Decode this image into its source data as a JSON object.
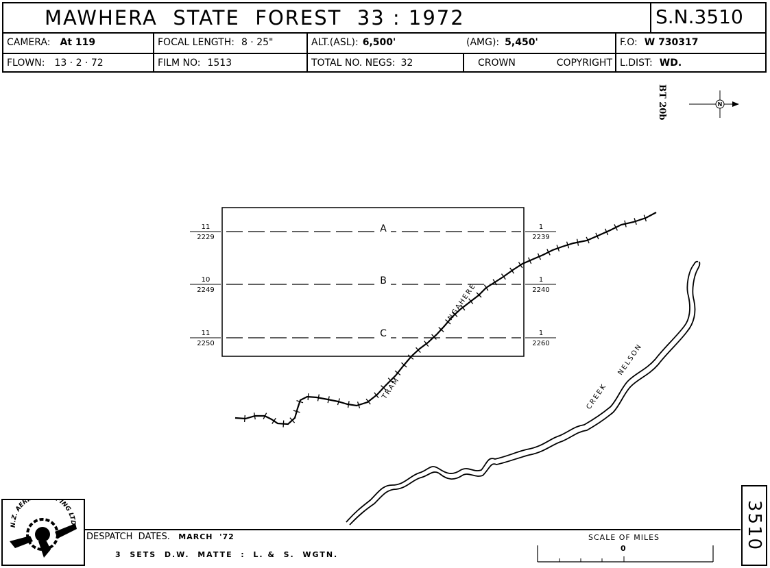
{
  "header": {
    "title": "MAWHERA  STATE  FOREST  33 : 1972",
    "sheet_no": "S.N.3510",
    "row2": {
      "camera_label": "CAMERA:",
      "camera_value": "At 119",
      "focal_label": "FOCAL  LENGTH:",
      "focal_value": "8 · 25\"",
      "alt_label": "ALT.(ASL):",
      "alt_value": "6,500'",
      "amg_label": "(AMG):",
      "amg_value": "5,450'",
      "fo_label": "F.O:",
      "fo_value": "W 730317"
    },
    "row3": {
      "flown_label": "FLOWN:",
      "flown_value": "13 · 2 · 72",
      "film_label": "FILM  NO:",
      "film_value": "1513",
      "negs_label": "TOTAL  NO.  NEGS:",
      "negs_value": "32",
      "crown": "CROWN",
      "copyright": "COPYRIGHT",
      "ldist_label": "L.DIST:",
      "ldist_value": "WD."
    }
  },
  "map": {
    "bt_ref": "BT 20b",
    "north_symbol": "N",
    "strips": [
      {
        "letter": "A",
        "left_top": "11",
        "left_bottom": "2229",
        "right_top": "1",
        "right_bottom": "2239"
      },
      {
        "letter": "B",
        "left_top": "10",
        "left_bottom": "2249",
        "right_top": "1",
        "right_bottom": "2240"
      },
      {
        "letter": "C",
        "left_top": "11",
        "left_bottom": "2250",
        "right_top": "1",
        "right_bottom": "2260"
      }
    ],
    "tram_label_1": "NGAHERE",
    "tram_label_2": "TRAM",
    "creek_label_1": "NELSON",
    "creek_label_2": "CREEK"
  },
  "footer": {
    "stamp_text": "N.Z. AERIAL MAPPING LTD.",
    "despatch_label": "DESPATCH  DATES.",
    "despatch_value": "MARCH  '72",
    "sets_line": "3  SETS  D.W.  MATTE  :  L. &  S.  WGTN.",
    "scale_label": "SCALE OF MILES",
    "scale_zero": "0",
    "sheet_number": "3510"
  }
}
